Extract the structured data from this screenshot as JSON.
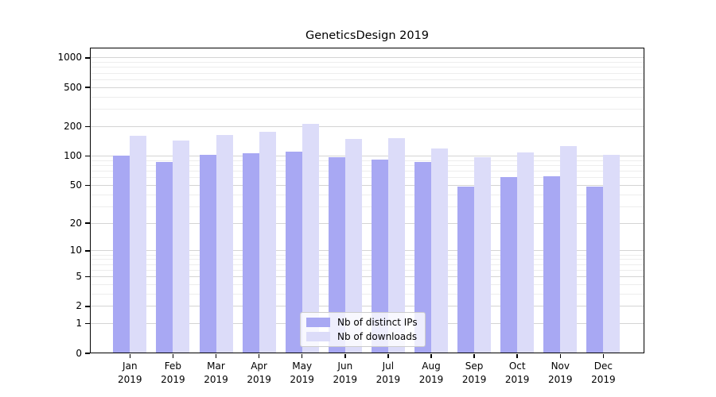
{
  "chart_data": {
    "type": "bar",
    "title": "GeneticsDesign 2019",
    "categories": [
      "Jan",
      "Feb",
      "Mar",
      "Apr",
      "May",
      "Jun",
      "Jul",
      "Aug",
      "Sep",
      "Oct",
      "Nov",
      "Dec"
    ],
    "x_year": "2019",
    "series": [
      {
        "name": "Nb of distinct IPs",
        "color": "#a8a8f3",
        "values": [
          101,
          86,
          102,
          106,
          111,
          97,
          92,
          86,
          48,
          61,
          62,
          48
        ]
      },
      {
        "name": "Nb of downloads",
        "color": "#dcdcf9",
        "values": [
          160,
          143,
          163,
          178,
          213,
          150,
          152,
          120,
          97,
          108,
          126,
          102
        ]
      }
    ],
    "yscale": "log1p",
    "yticks": [
      0,
      1,
      2,
      5,
      10,
      20,
      50,
      100,
      200,
      500,
      1000
    ],
    "ylim": [
      0,
      1300
    ],
    "xlabel": "",
    "ylabel": "",
    "grid": "horizontal major + minor log gridlines",
    "legend_position": "lower center"
  },
  "colors": {
    "major_gridline": "#d4d4d4",
    "minor_gridline": "#ededed",
    "axis": "#000000",
    "legend_border": "#cccccc"
  }
}
